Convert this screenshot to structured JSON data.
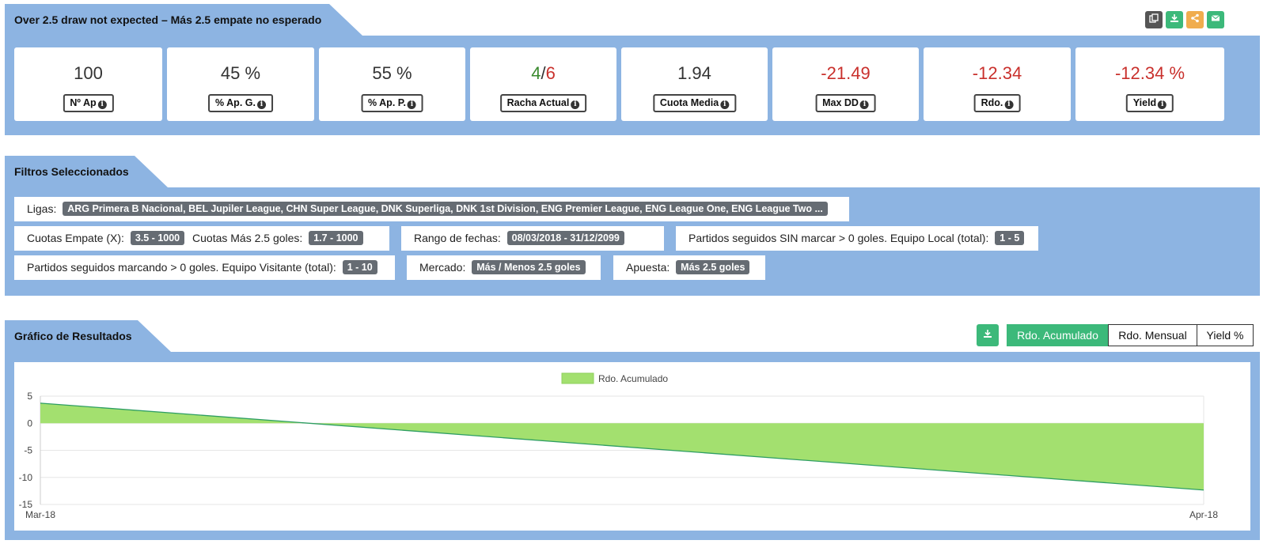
{
  "strategy": {
    "title": "Over 2.5 draw not expected – Más 2.5 empate no esperado"
  },
  "toolbar": {
    "copy_icon": "copy-icon",
    "download_icon": "download-icon",
    "share_icon": "share-icon",
    "email_icon": "envelope-icon",
    "colors": {
      "copy": "#555555",
      "download": "#3cb97a",
      "share": "#f0ad4e",
      "email": "#3cb97a"
    }
  },
  "stats": [
    {
      "value": "100",
      "label": "Nº Ap"
    },
    {
      "value": "45 %",
      "label": "% Ap. G."
    },
    {
      "value": "55 %",
      "label": "% Ap. P."
    },
    {
      "value_win": "4",
      "value_sep": "/",
      "value_total": "6",
      "label": "Racha Actual"
    },
    {
      "value": "1.94",
      "label": "Cuota Media"
    },
    {
      "value": "-21.49",
      "label": "Max DD",
      "negative": true
    },
    {
      "value": "-12.34",
      "label": "Rdo.",
      "negative": true
    },
    {
      "value": "-12.34 %",
      "label": "Yield",
      "negative": true
    }
  ],
  "filters": {
    "title": "Filtros Seleccionados",
    "ligas_label": "Ligas:",
    "ligas_value": "ARG Primera B Nacional, BEL Jupiler League, CHN Super League, DNK Superliga, DNK 1st Division, ENG Premier League, ENG League One, ENG League Two ...",
    "cuotas_empate_label": "Cuotas Empate (X):",
    "cuotas_empate_value": "3.5 - 1000",
    "cuotas_mas_label": "Cuotas Más 2.5 goles:",
    "cuotas_mas_value": "1.7 - 1000",
    "rango_label": "Rango de fechas:",
    "rango_value": "08/03/2018 - 31/12/2099",
    "sin_marcar_label": "Partidos seguidos SIN marcar > 0 goles. Equipo Local (total):",
    "sin_marcar_value": "1 - 5",
    "marcando_label": "Partidos seguidos marcando > 0 goles. Equipo Visitante (total):",
    "marcando_value": "1 - 10",
    "mercado_label": "Mercado:",
    "mercado_value": "Más / Menos 2.5 goles",
    "apuesta_label": "Apuesta:",
    "apuesta_value": "Más 2.5 goles"
  },
  "results": {
    "title": "Gráfico de Resultados",
    "download_icon": "download-icon",
    "tabs": [
      {
        "label": "Rdo. Acumulado",
        "active": true
      },
      {
        "label": "Rdo. Mensual",
        "active": false
      },
      {
        "label": "Yield %",
        "active": false
      }
    ]
  },
  "chart_data": {
    "type": "area",
    "x": [
      "Mar-18",
      "Apr-18"
    ],
    "series": [
      {
        "name": "Rdo. Acumulado",
        "values": [
          3.7,
          -12.34
        ],
        "color": "#a3e06f",
        "line_color": "#2e9e63"
      }
    ],
    "y_ticks": [
      5,
      0,
      -5,
      -10,
      -15
    ],
    "ylim": [
      -15,
      5
    ],
    "legend": "top-center",
    "grid": true
  }
}
